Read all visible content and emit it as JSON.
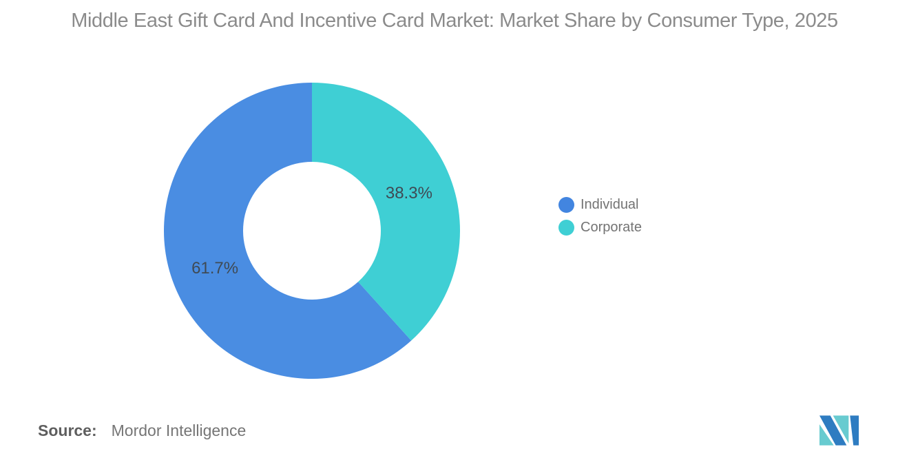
{
  "title": {
    "text": "Middle East Gift Card And Incentive Card Market: Market Share by Consumer Type, 2025"
  },
  "chart_data": {
    "type": "pie",
    "subtype": "donut",
    "title": "Middle East Gift Card And Incentive Card Market: Market Share by Consumer Type, 2025",
    "categories": [
      "Individual",
      "Corporate"
    ],
    "values": [
      61.7,
      38.3
    ],
    "labels": [
      "61.7%",
      "38.3%"
    ],
    "colors": [
      "#4a8de2",
      "#3fcfd4"
    ],
    "start_position": "12-oclock",
    "direction": "counterclockwise",
    "inner_radius_ratio": 0.465,
    "legend_position": "right",
    "label_color": "#3f4a54"
  },
  "legend": {
    "items": [
      {
        "label": "Individual",
        "color": "#4285e0"
      },
      {
        "label": "Corporate",
        "color": "#3fcfd4"
      }
    ]
  },
  "source": {
    "prefix": "Source:",
    "text": "Mordor Intelligence"
  },
  "logo": {
    "name": "mordor-intelligence-logo",
    "blue": "#2e7cc1",
    "teal": "#68cbd0"
  }
}
